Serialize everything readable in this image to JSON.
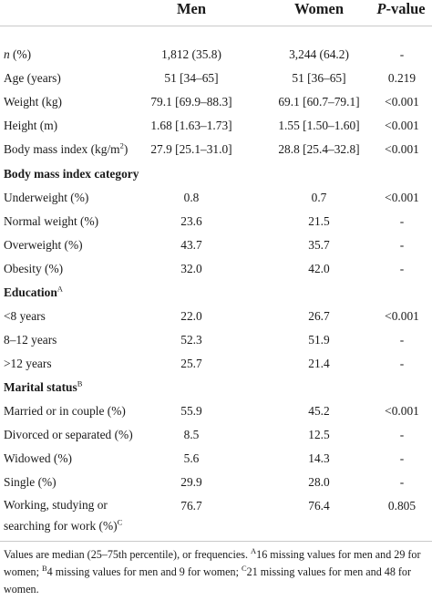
{
  "header": {
    "col_men": "Men",
    "col_women": "Women",
    "col_p_prefix": "P",
    "col_p_suffix": "-value"
  },
  "rows": {
    "n": {
      "label_i": "n",
      "label_rest": " (%)",
      "men": "1,812 (35.8)",
      "women": "3,244 (64.2)",
      "p": "-"
    },
    "age": {
      "label": "Age (years)",
      "men": "51 [34–65]",
      "women": "51 [36–65]",
      "p": "0.219"
    },
    "weight": {
      "label": "Weight (kg)",
      "men": "79.1 [69.9–88.3]",
      "women": "69.1 [60.7–79.1]",
      "p": "<0.001"
    },
    "height": {
      "label": "Height (m)",
      "men": "1.68 [1.63–1.73]",
      "women": "1.55 [1.50–1.60]",
      "p": "<0.001"
    },
    "bmi": {
      "label": "Body mass index (kg/m",
      "label_sup": "2",
      "label_end": ")",
      "men": "27.9 [25.1–31.0]",
      "women": "28.8 [25.4–32.8]",
      "p": "<0.001"
    },
    "bmi_cat": {
      "label": "Body mass index category"
    },
    "under": {
      "label": "Underweight (%)",
      "men": "0.8",
      "women": "0.7",
      "p": "<0.001"
    },
    "normal": {
      "label": "Normal weight (%)",
      "men": "23.6",
      "women": "21.5",
      "p": "-"
    },
    "over": {
      "label": "Overweight (%)",
      "men": "43.7",
      "women": "35.7",
      "p": "-"
    },
    "obese": {
      "label": "Obesity (%)",
      "men": "32.0",
      "women": "42.0",
      "p": "-"
    },
    "edu": {
      "label": "Education",
      "sup": "A"
    },
    "lt8": {
      "label": "<8 years",
      "men": "22.0",
      "women": "26.7",
      "p": "<0.001"
    },
    "e812": {
      "label": "8–12 years",
      "men": "52.3",
      "women": "51.9",
      "p": "-"
    },
    "gt12": {
      "label": ">12 years",
      "men": "25.7",
      "women": "21.4",
      "p": "-"
    },
    "marital": {
      "label": "Marital status",
      "sup": "B"
    },
    "married": {
      "label": "Married or in couple (%)",
      "men": "55.9",
      "women": "45.2",
      "p": "<0.001"
    },
    "divorced": {
      "label": "Divorced or separated (%)",
      "men": "8.5",
      "women": "12.5",
      "p": "-"
    },
    "widowed": {
      "label": "Widowed (%)",
      "men": "5.6",
      "women": "14.3",
      "p": "-"
    },
    "single": {
      "label": "Single (%)",
      "men": "29.9",
      "women": "28.0",
      "p": "-"
    },
    "working": {
      "label_line1": "Working, studying or",
      "label_line2": "searching for work (%)",
      "sup": "C",
      "men": "76.7",
      "women": "76.4",
      "p": "0.805"
    }
  },
  "footnote": {
    "text1": "Values are median (25–75th percentile), or frequencies. ",
    "supA": "A",
    "text2": "16 missing values for men and 29 for women; ",
    "supB": "B",
    "text3": "4 missing values for men and 9 for women; ",
    "supC": "C",
    "text4": "21 missing values for men and 48 for women."
  }
}
